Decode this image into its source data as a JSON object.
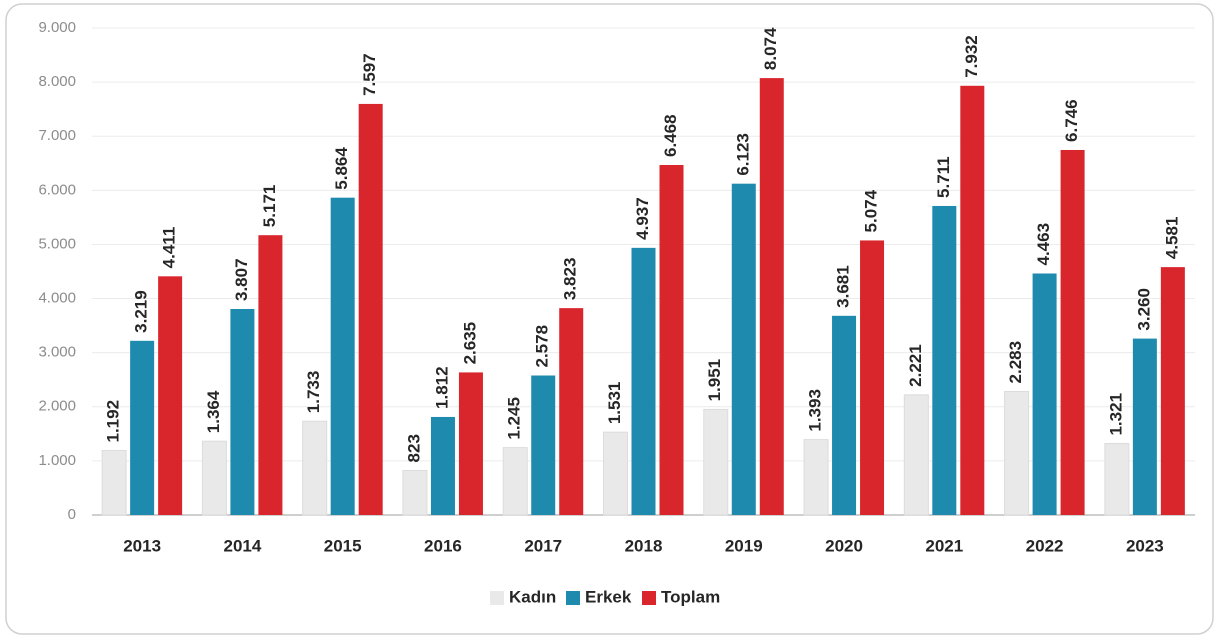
{
  "chart_data": {
    "type": "bar",
    "categories": [
      "2013",
      "2014",
      "2015",
      "2016",
      "2017",
      "2018",
      "2019",
      "2020",
      "2021",
      "2022",
      "2023"
    ],
    "series": [
      {
        "name": "Kadın",
        "color": "#e9e9e9",
        "values": [
          1192,
          1364,
          1733,
          823,
          1245,
          1531,
          1951,
          1393,
          2221,
          2283,
          1321
        ],
        "value_labels": [
          "1.192",
          "1.364",
          "1.733",
          "823",
          "1.245",
          "1.531",
          "1.951",
          "1.393",
          "2.221",
          "2.283",
          "1.321"
        ]
      },
      {
        "name": "Erkek",
        "color": "#1d8aae",
        "values": [
          3219,
          3807,
          5864,
          1812,
          2578,
          4937,
          6123,
          3681,
          5711,
          4463,
          3260
        ],
        "value_labels": [
          "3.219",
          "3.807",
          "5.864",
          "1.812",
          "2.578",
          "4.937",
          "6.123",
          "3.681",
          "5.711",
          "4.463",
          "3.260"
        ]
      },
      {
        "name": "Toplam",
        "color": "#d8262c",
        "values": [
          4411,
          5171,
          7597,
          2635,
          3823,
          6468,
          8074,
          5074,
          7932,
          6746,
          4581
        ],
        "value_labels": [
          "4.411",
          "5.171",
          "7.597",
          "2.635",
          "3.823",
          "6.468",
          "8.074",
          "5.074",
          "7.932",
          "6.746",
          "4.581"
        ]
      }
    ],
    "ylim": [
      0,
      9000
    ],
    "yticks": [
      0,
      {
        "value": 1000,
        "label": "1.000"
      },
      {
        "value": 2000,
        "label": "2.000"
      },
      {
        "value": 3000,
        "label": "3.000"
      },
      {
        "value": 4000,
        "label": "4.000"
      },
      {
        "value": 5000,
        "label": "5.000"
      },
      {
        "value": 6000,
        "label": "6.000"
      },
      {
        "value": 7000,
        "label": "7.000"
      },
      {
        "value": 8000,
        "label": "8.000"
      },
      {
        "value": 9000,
        "label": "9.000"
      }
    ],
    "grid": true,
    "legend": "bottom"
  }
}
